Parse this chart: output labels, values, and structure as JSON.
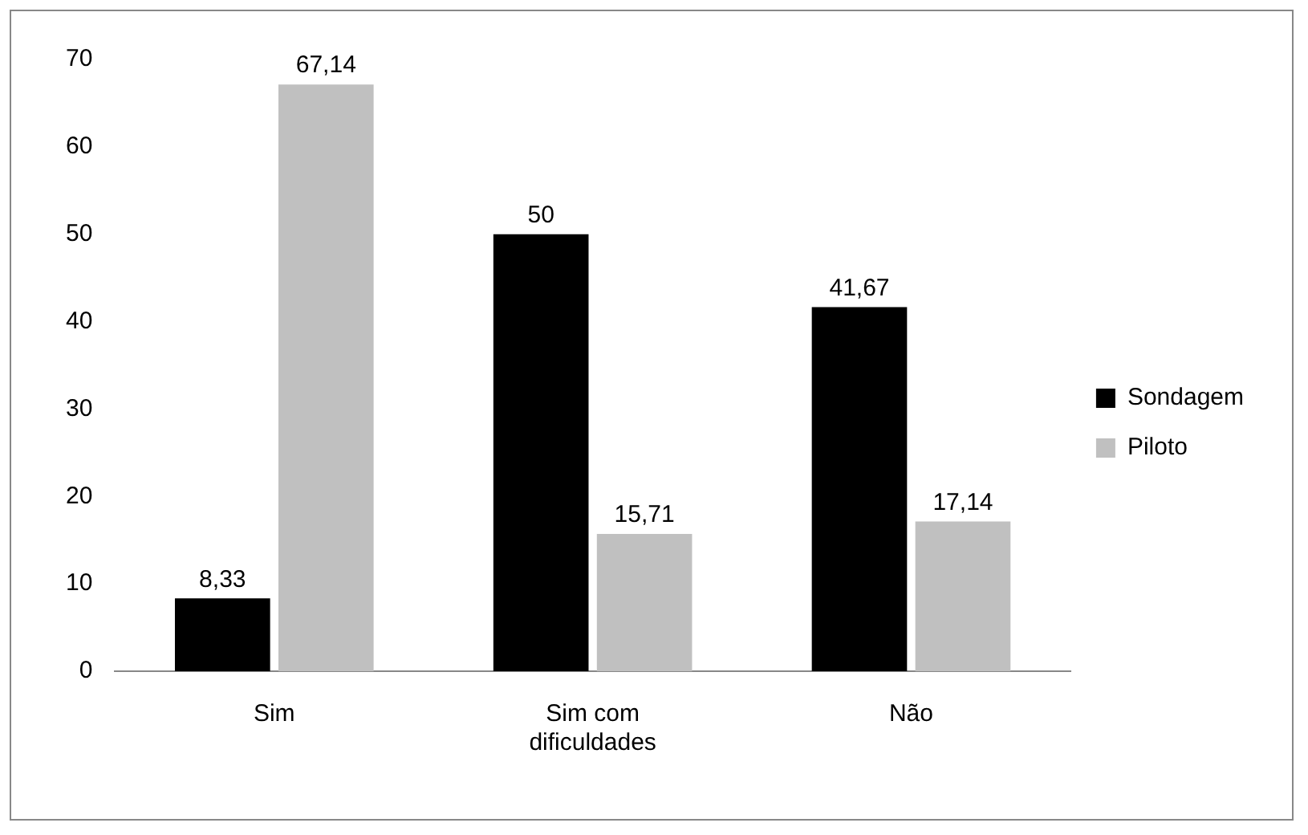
{
  "chart_data": {
    "type": "bar",
    "categories": [
      "Sim",
      "Sim com dificuldades",
      "Não"
    ],
    "series": [
      {
        "name": "Sondagem",
        "color": "#000000",
        "values": [
          8.33,
          50,
          41.67
        ],
        "value_labels": [
          "8,33",
          "50",
          "41,67"
        ]
      },
      {
        "name": "Piloto",
        "color": "#c0c0c0",
        "values": [
          67.14,
          15.71,
          17.14
        ],
        "value_labels": [
          "67,14",
          "15,71",
          "17,14"
        ]
      }
    ],
    "ylim": [
      0,
      70
    ],
    "yticks": [
      0,
      10,
      20,
      30,
      40,
      50,
      60,
      70
    ],
    "grid": false,
    "legend": "right"
  }
}
